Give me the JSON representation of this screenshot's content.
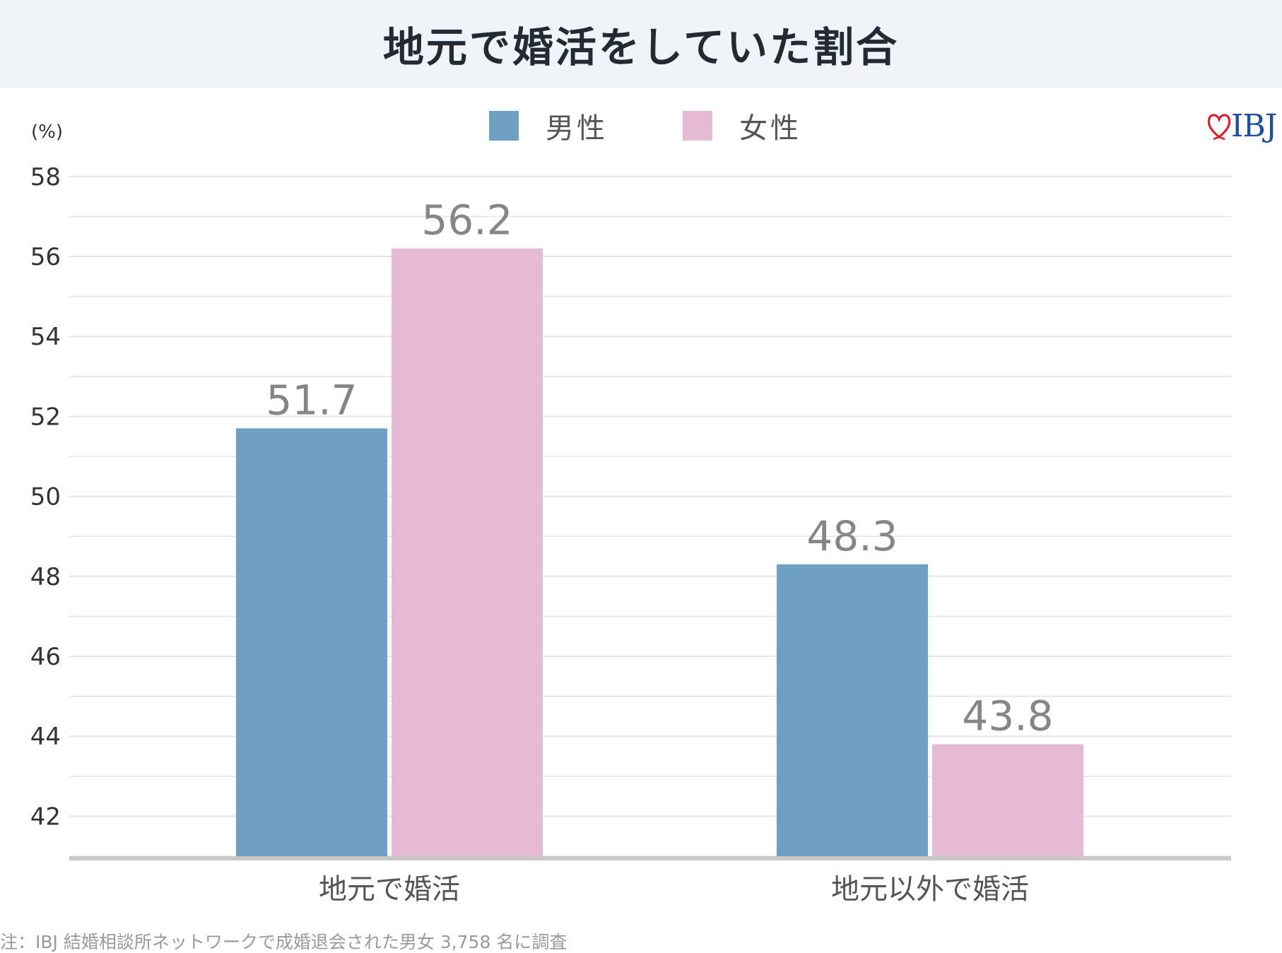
{
  "title": "地元で婚活をしていた割合",
  "brand": {
    "logo_text": "IBJ",
    "logo_color": "#1f4f9a",
    "heart_color": "#d9232e"
  },
  "footnote": "注：IBJ 結婚相談所ネットワークで成婚退会された男女 3,758 名に調査",
  "chart_data": {
    "type": "bar",
    "title": "地元で婚活をしていた割合",
    "unit_label": "(%)",
    "categories": [
      "地元で婚活",
      "地元以外で婚活"
    ],
    "series": [
      {
        "name": "男性",
        "values": [
          51.7,
          48.3
        ],
        "value_labels": [
          "51.7",
          "48.3"
        ],
        "color": "#6fa0c3"
      },
      {
        "name": "女性",
        "values": [
          56.2,
          43.8
        ],
        "value_labels": [
          "56.2",
          "43.8"
        ],
        "color": "#e6bad5"
      }
    ],
    "ylim": [
      41,
      58
    ],
    "yticks": [
      "42",
      "44",
      "46",
      "48",
      "50",
      "52",
      "54",
      "56",
      "58"
    ],
    "grid": true,
    "legend_position": "top-center"
  }
}
